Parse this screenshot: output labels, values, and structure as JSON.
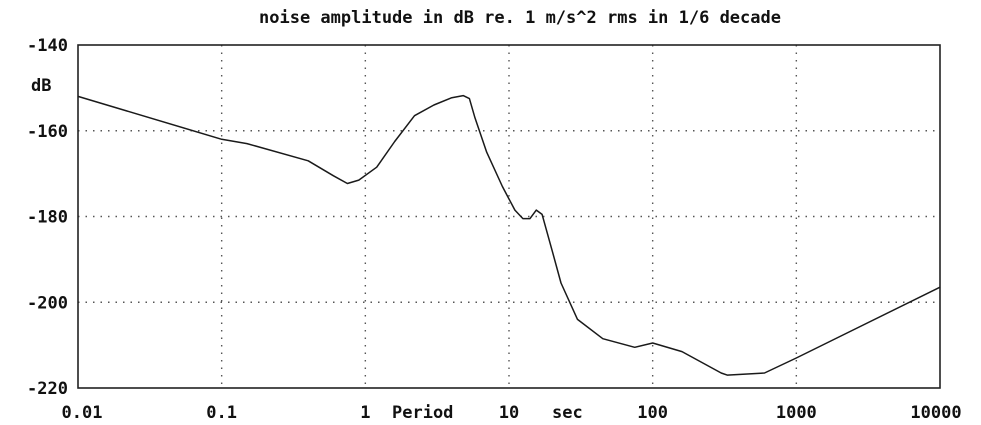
{
  "chart_data": {
    "type": "line",
    "title": "noise amplitude in dB re. 1 m/s^2 rms in 1/6 decade",
    "ylabel": "dB",
    "xlabel_parts": [
      "Period",
      "sec"
    ],
    "x_scale": "log",
    "xlim": [
      0.01,
      10000
    ],
    "ylim": [
      -220,
      -140
    ],
    "grid": true,
    "x_ticks": [
      {
        "value": 0.01,
        "label": "0.01"
      },
      {
        "value": 0.1,
        "label": "0.1"
      },
      {
        "value": 1,
        "label": "1"
      },
      {
        "value": 10,
        "label": "10"
      },
      {
        "value": 100,
        "label": "100"
      },
      {
        "value": 1000,
        "label": "1000"
      },
      {
        "value": 10000,
        "label": "10000"
      }
    ],
    "y_ticks": [
      {
        "value": -140,
        "label": "-140"
      },
      {
        "value": -160,
        "label": "-160"
      },
      {
        "value": -180,
        "label": "-180"
      },
      {
        "value": -200,
        "label": "-200"
      },
      {
        "value": -220,
        "label": "-220"
      }
    ],
    "series": [
      {
        "color": "#1a1a1a",
        "x": [
          0.01,
          0.1,
          0.15,
          0.4,
          0.6,
          0.75,
          0.9,
          1.2,
          1.6,
          2.2,
          3.0,
          4.0,
          4.8,
          5.3,
          5.8,
          7.0,
          9.0,
          11.0,
          12.5,
          14.0,
          15.5,
          17.0,
          20.0,
          23.0,
          30.0,
          45.0,
          75.0,
          100.0,
          160.0,
          300.0,
          330.0,
          600.0,
          1000.0,
          10000.0
        ],
        "y": [
          -152,
          -162,
          -163,
          -167,
          -170.5,
          -172.3,
          -171.5,
          -168.5,
          -162.5,
          -156.5,
          -154,
          -152.3,
          -151.8,
          -152.5,
          -157,
          -165,
          -173,
          -178.5,
          -180.5,
          -180.5,
          -178.5,
          -179.5,
          -188,
          -195.5,
          -204,
          -208.5,
          -210.5,
          -209.5,
          -211.5,
          -216.5,
          -217,
          -216.5,
          -213,
          -196.5
        ]
      }
    ]
  }
}
